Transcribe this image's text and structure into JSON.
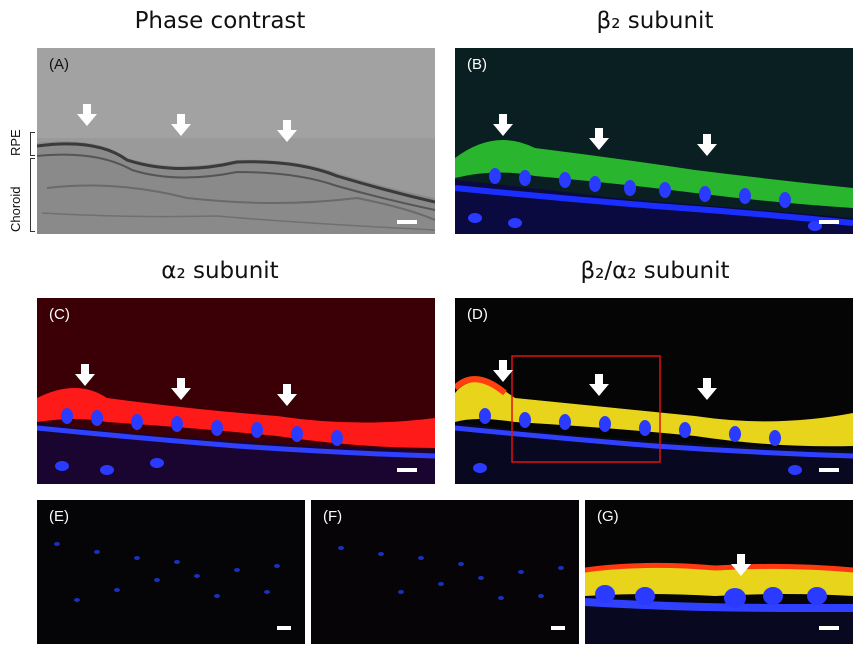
{
  "titles": {
    "a": "Phase contrast",
    "b": "β₂ subunit",
    "c": "α₂ subunit",
    "d": "β₂/α₂ subunit"
  },
  "labels": {
    "a": "(A)",
    "b": "(B)",
    "c": "(C)",
    "d": "(D)",
    "e": "(E)",
    "f": "(F)",
    "g": "(G)"
  },
  "side_labels": {
    "rpe": "RPE",
    "choroid": "Choroid"
  },
  "colors": {
    "green": "#2fd02f",
    "red": "#ff1a1a",
    "blue": "#1a2fff",
    "yellow": "#f0e020",
    "box": "#e01010"
  }
}
